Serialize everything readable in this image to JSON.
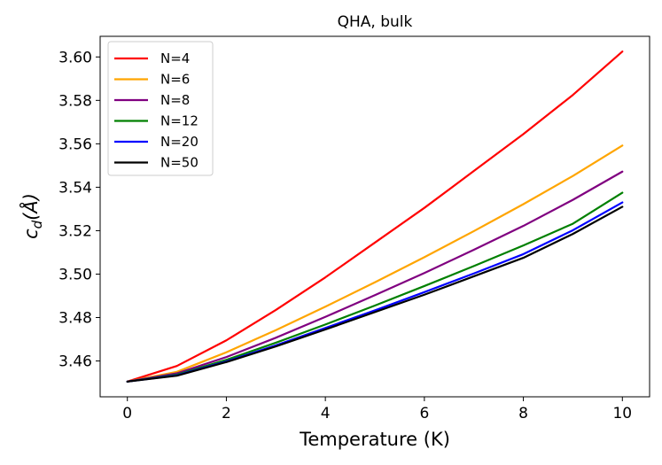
{
  "chart_data": {
    "type": "line",
    "title": "QHA, bulk",
    "xlabel": "Temperature (K)",
    "ylabel": "c_d(Å)",
    "ylabel_base": "c",
    "ylabel_sub": "d",
    "ylabel_rest": "(Å)",
    "xlim": [
      -0.55,
      10.55
    ],
    "ylim": [
      3.4435,
      3.6095
    ],
    "xticks": [
      0,
      2,
      4,
      6,
      8,
      10
    ],
    "xtick_labels": [
      "0",
      "2",
      "4",
      "6",
      "8",
      "10"
    ],
    "yticks": [
      3.46,
      3.48,
      3.5,
      3.52,
      3.54,
      3.56,
      3.58,
      3.6
    ],
    "ytick_labels": [
      "3.46",
      "3.48",
      "3.50",
      "3.52",
      "3.54",
      "3.56",
      "3.58",
      "3.60"
    ],
    "grid": false,
    "legend_position": "upper-left",
    "x": [
      0,
      1,
      2,
      3,
      4,
      5,
      6,
      7,
      8,
      9,
      10
    ],
    "series": [
      {
        "name": "N=4",
        "color": "#ff0000",
        "values": [
          3.4505,
          3.4577,
          3.4695,
          3.4835,
          3.4985,
          3.5145,
          3.5305,
          3.5475,
          3.5645,
          3.5825,
          3.6025
        ]
      },
      {
        "name": "N=6",
        "color": "#ffa500",
        "values": [
          3.4505,
          3.455,
          3.464,
          3.4742,
          3.485,
          3.4962,
          3.5078,
          3.5198,
          3.5322,
          3.5452,
          3.5592
        ]
      },
      {
        "name": "N=8",
        "color": "#800080",
        "values": [
          3.4505,
          3.4543,
          3.4618,
          3.4707,
          3.4803,
          3.4903,
          3.5005,
          3.5112,
          3.5222,
          3.5342,
          3.5472
        ]
      },
      {
        "name": "N=12",
        "color": "#008000",
        "values": [
          3.4505,
          3.4537,
          3.4605,
          3.4684,
          3.4768,
          3.4855,
          3.4945,
          3.5037,
          3.5132,
          3.5232,
          3.5375
        ]
      },
      {
        "name": "N=20",
        "color": "#0000ff",
        "values": [
          3.4505,
          3.4534,
          3.4598,
          3.4672,
          3.4752,
          3.4833,
          3.4917,
          3.5003,
          3.5092,
          3.5202,
          3.533
        ]
      },
      {
        "name": "N=50",
        "color": "#000000",
        "values": [
          3.4505,
          3.4532,
          3.4595,
          3.4667,
          3.4745,
          3.4825,
          3.4905,
          3.499,
          3.5075,
          3.5185,
          3.531
        ]
      }
    ]
  }
}
